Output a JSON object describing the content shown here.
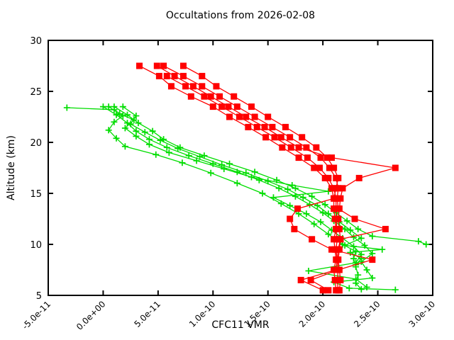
{
  "chart_data": {
    "type": "line",
    "title": "Occultations from 2026-02-08",
    "xlabel": "CFC11 VMR",
    "ylabel": "Altitude (km)",
    "xlim": [
      -5e-11,
      3e-10
    ],
    "ylim": [
      5,
      30
    ],
    "grid": false,
    "legend_position": "none",
    "x_tick_rotation_deg": -45,
    "x_ticks": [
      {
        "value": -5e-11,
        "label": "-5.0e-11"
      },
      {
        "value": 0.0,
        "label": "0.0e+00"
      },
      {
        "value": 5e-11,
        "label": "5.0e-11"
      },
      {
        "value": 1e-10,
        "label": "1.0e-10"
      },
      {
        "value": 1.5e-10,
        "label": "1.5e-10"
      },
      {
        "value": 2e-10,
        "label": "2.0e-10"
      },
      {
        "value": 2.5e-10,
        "label": "2.5e-10"
      },
      {
        "value": 3e-10,
        "label": "3.0e-10"
      }
    ],
    "y_ticks": [
      {
        "value": 5,
        "label": "5"
      },
      {
        "value": 10,
        "label": "10"
      },
      {
        "value": 15,
        "label": "15"
      },
      {
        "value": 20,
        "label": "20"
      },
      {
        "value": 25,
        "label": "25"
      },
      {
        "value": 30,
        "label": "30"
      }
    ],
    "colors": {
      "red": "#ff0000",
      "green": "#00dd00",
      "axis": "#000000",
      "background": "#ffffff"
    },
    "series": [
      {
        "name": "occultation-green-1",
        "color": "green",
        "marker": "plus",
        "points": [
          [
            -3.3e-11,
            23.4
          ],
          [
            1e-11,
            23.2
          ],
          [
            1.8e-11,
            22.6
          ],
          [
            1e-11,
            22.0
          ],
          [
            5e-12,
            21.2
          ],
          [
            1.2e-11,
            20.4
          ],
          [
            2e-11,
            19.6
          ],
          [
            4.8e-11,
            18.8
          ],
          [
            7.2e-11,
            18.0
          ],
          [
            9.8e-11,
            17.0
          ],
          [
            1.22e-10,
            16.0
          ],
          [
            1.45e-10,
            15.0
          ],
          [
            1.62e-10,
            14.0
          ],
          [
            1.78e-10,
            13.0
          ],
          [
            1.92e-10,
            12.0
          ],
          [
            2.05e-10,
            11.0
          ],
          [
            2.18e-10,
            10.0
          ],
          [
            2.3e-10,
            9.3
          ],
          [
            2.28e-10,
            8.6
          ],
          [
            2.3e-10,
            7.8
          ],
          [
            2.32e-10,
            7.0
          ],
          [
            2.3e-10,
            6.2
          ],
          [
            2.35e-10,
            5.6
          ]
        ]
      },
      {
        "name": "occultation-green-2",
        "color": "green",
        "marker": "plus",
        "points": [
          [
            5e-12,
            23.5
          ],
          [
            1.5e-11,
            22.8
          ],
          [
            2.8e-11,
            22.2
          ],
          [
            2e-11,
            21.4
          ],
          [
            3e-11,
            20.6
          ],
          [
            4.2e-11,
            19.8
          ],
          [
            6e-11,
            19.0
          ],
          [
            8.5e-11,
            18.2
          ],
          [
            1.1e-10,
            17.4
          ],
          [
            1.35e-10,
            16.6
          ],
          [
            1.72e-10,
            15.8
          ],
          [
            2.05e-10,
            15.2
          ],
          [
            1.55e-10,
            14.6
          ],
          [
            1.7e-10,
            13.8
          ],
          [
            1.85e-10,
            13.0
          ],
          [
            1.98e-10,
            12.2
          ],
          [
            2.08e-10,
            11.4
          ],
          [
            2.18e-10,
            10.6
          ],
          [
            2.28e-10,
            9.8
          ],
          [
            2.35e-10,
            9.0
          ],
          [
            2.3e-10,
            8.2
          ],
          [
            1.87e-10,
            7.4
          ],
          [
            2.3e-10,
            6.6
          ],
          [
            2.4e-10,
            5.8
          ]
        ]
      },
      {
        "name": "occultation-green-3",
        "color": "green",
        "marker": "plus",
        "points": [
          [
            1e-11,
            23.5
          ],
          [
            2.2e-11,
            22.7
          ],
          [
            3.2e-11,
            21.9
          ],
          [
            4.5e-11,
            21.1
          ],
          [
            5.5e-11,
            20.3
          ],
          [
            7e-11,
            19.5
          ],
          [
            9.2e-11,
            18.7
          ],
          [
            1.15e-10,
            17.9
          ],
          [
            1.38e-10,
            17.1
          ],
          [
            1.58e-10,
            16.3
          ],
          [
            1.75e-10,
            15.5
          ],
          [
            1.9e-10,
            14.7
          ],
          [
            2.02e-10,
            13.9
          ],
          [
            2.12e-10,
            13.1
          ],
          [
            2.22e-10,
            12.3
          ],
          [
            2.32e-10,
            11.5
          ],
          [
            2.45e-10,
            10.8
          ],
          [
            2.87e-10,
            10.3
          ],
          [
            2.94e-10,
            10.0
          ]
        ]
      },
      {
        "name": "occultation-green-4",
        "color": "green",
        "marker": "plus",
        "points": [
          [
            1.8e-11,
            23.5
          ],
          [
            3e-11,
            22.6
          ],
          [
            2.5e-11,
            21.8
          ],
          [
            3.8e-11,
            21.0
          ],
          [
            5.2e-11,
            20.2
          ],
          [
            6.8e-11,
            19.4
          ],
          [
            8.8e-11,
            18.6
          ],
          [
            1.08e-10,
            17.8
          ],
          [
            1.3e-10,
            17.0
          ],
          [
            1.5e-10,
            16.2
          ],
          [
            1.68e-10,
            15.4
          ],
          [
            1.82e-10,
            14.6
          ],
          [
            1.95e-10,
            13.8
          ],
          [
            2.05e-10,
            13.0
          ],
          [
            2.15e-10,
            12.2
          ],
          [
            2.25e-10,
            11.4
          ],
          [
            2.35e-10,
            10.6
          ],
          [
            2.2e-10,
            9.9
          ],
          [
            2.54e-10,
            9.5
          ],
          [
            2.25e-10,
            9.2
          ],
          [
            2.35e-10,
            8.6
          ],
          [
            2.3e-10,
            8.0
          ]
        ]
      },
      {
        "name": "occultation-green-5",
        "color": "green",
        "marker": "plus",
        "points": [
          [
            0.0,
            23.5
          ],
          [
            1.2e-11,
            22.7
          ],
          [
            2.2e-11,
            21.9
          ],
          [
            3e-11,
            21.1
          ],
          [
            4.2e-11,
            20.3
          ],
          [
            5.8e-11,
            19.5
          ],
          [
            7.8e-11,
            18.7
          ],
          [
            1e-10,
            17.9
          ],
          [
            1.22e-10,
            17.1
          ],
          [
            1.42e-10,
            16.3
          ],
          [
            1.6e-10,
            15.5
          ],
          [
            1.75e-10,
            14.7
          ],
          [
            1.88e-10,
            13.9
          ],
          [
            2e-10,
            13.1
          ],
          [
            2.1e-10,
            12.3
          ],
          [
            2.2e-10,
            11.5
          ],
          [
            2.28e-10,
            10.7
          ],
          [
            2.38e-10,
            9.9
          ],
          [
            2.45e-10,
            9.1
          ],
          [
            2.35e-10,
            8.3
          ],
          [
            2.4e-10,
            7.5
          ],
          [
            2.45e-10,
            6.7
          ],
          [
            2.1e-10,
            6.3
          ],
          [
            2.24e-10,
            5.7
          ],
          [
            2.66e-10,
            5.55
          ]
        ]
      },
      {
        "name": "occultation-red-1",
        "color": "red",
        "marker": "square",
        "points": [
          [
            3.3e-11,
            27.5
          ],
          [
            5.1e-11,
            26.5
          ],
          [
            6.2e-11,
            25.5
          ],
          [
            8e-11,
            24.5
          ],
          [
            1e-10,
            23.5
          ],
          [
            1.15e-10,
            22.5
          ],
          [
            1.32e-10,
            21.5
          ],
          [
            1.48e-10,
            20.5
          ],
          [
            1.63e-10,
            19.5
          ],
          [
            1.78e-10,
            18.5
          ],
          [
            1.92e-10,
            17.5
          ],
          [
            2.02e-10,
            16.5
          ],
          [
            2.08e-10,
            15.5
          ],
          [
            2.1e-10,
            14.5
          ],
          [
            2.1e-10,
            13.5
          ],
          [
            2.11e-10,
            12.5
          ],
          [
            2.12e-10,
            11.5
          ],
          [
            2.1e-10,
            10.5
          ],
          [
            2.11e-10,
            9.5
          ],
          [
            2.12e-10,
            8.5
          ],
          [
            2.1e-10,
            7.5
          ],
          [
            2.11e-10,
            6.5
          ],
          [
            2.12e-10,
            5.5
          ]
        ]
      },
      {
        "name": "occultation-red-2",
        "color": "red",
        "marker": "square",
        "points": [
          [
            4.9e-11,
            27.5
          ],
          [
            6.5e-11,
            26.5
          ],
          [
            8.2e-11,
            25.5
          ],
          [
            9.8e-11,
            24.5
          ],
          [
            1.14e-10,
            23.5
          ],
          [
            1.3e-10,
            22.5
          ],
          [
            1.47e-10,
            21.5
          ],
          [
            1.62e-10,
            20.5
          ],
          [
            1.78e-10,
            19.5
          ],
          [
            2.08e-10,
            18.5
          ],
          [
            2.66e-10,
            17.5
          ],
          [
            2.33e-10,
            16.5
          ],
          [
            2.18e-10,
            15.5
          ],
          [
            2.16e-10,
            14.5
          ],
          [
            2.15e-10,
            13.5
          ],
          [
            2.14e-10,
            12.5
          ],
          [
            2.15e-10,
            11.5
          ],
          [
            2.16e-10,
            10.5
          ],
          [
            2.15e-10,
            9.5
          ],
          [
            2.14e-10,
            8.5
          ],
          [
            2.15e-10,
            7.5
          ],
          [
            2.16e-10,
            6.5
          ],
          [
            2.15e-10,
            5.5
          ]
        ]
      },
      {
        "name": "occultation-red-3",
        "color": "red",
        "marker": "square",
        "points": [
          [
            5.5e-11,
            27.5
          ],
          [
            7.3e-11,
            26.5
          ],
          [
            9e-11,
            25.5
          ],
          [
            1.06e-10,
            24.5
          ],
          [
            1.22e-10,
            23.5
          ],
          [
            1.38e-10,
            22.5
          ],
          [
            1.54e-10,
            21.5
          ],
          [
            1.7e-10,
            20.5
          ],
          [
            1.85e-10,
            19.5
          ],
          [
            1.98e-10,
            18.5
          ],
          [
            2.06e-10,
            17.5
          ],
          [
            2.12e-10,
            16.5
          ],
          [
            2.14e-10,
            15.5
          ],
          [
            2.13e-10,
            14.5
          ],
          [
            2.14e-10,
            13.5
          ],
          [
            2.29e-10,
            12.5
          ],
          [
            2.57e-10,
            11.5
          ],
          [
            2.16e-10,
            10.5
          ],
          [
            2.14e-10,
            9.5
          ],
          [
            2.13e-10,
            8.5
          ],
          [
            2.14e-10,
            7.5
          ],
          [
            2.13e-10,
            6.5
          ],
          [
            2.14e-10,
            5.5
          ]
        ]
      },
      {
        "name": "occultation-red-4",
        "color": "red",
        "marker": "square",
        "points": [
          [
            7.3e-11,
            27.5
          ],
          [
            9e-11,
            26.5
          ],
          [
            1.03e-10,
            25.5
          ],
          [
            1.19e-10,
            24.5
          ],
          [
            1.35e-10,
            23.5
          ],
          [
            1.5e-10,
            22.5
          ],
          [
            1.66e-10,
            21.5
          ],
          [
            1.81e-10,
            20.5
          ],
          [
            1.94e-10,
            19.5
          ],
          [
            2.04e-10,
            18.5
          ],
          [
            2.1e-10,
            17.5
          ],
          [
            2.14e-10,
            16.5
          ],
          [
            2.12e-10,
            15.5
          ],
          [
            2.1e-10,
            14.5
          ],
          [
            1.77e-10,
            13.5
          ],
          [
            1.7e-10,
            12.5
          ],
          [
            1.74e-10,
            11.5
          ],
          [
            1.9e-10,
            10.5
          ],
          [
            2.08e-10,
            9.5
          ],
          [
            2.45e-10,
            8.5
          ],
          [
            2.14e-10,
            7.5
          ],
          [
            1.89e-10,
            6.5
          ],
          [
            2.05e-10,
            5.5
          ]
        ]
      },
      {
        "name": "occultation-red-5",
        "color": "red",
        "marker": "square",
        "points": [
          [
            5.8e-11,
            26.5
          ],
          [
            7.5e-11,
            25.5
          ],
          [
            9.2e-11,
            24.5
          ],
          [
            1.08e-10,
            23.5
          ],
          [
            1.24e-10,
            22.5
          ],
          [
            1.4e-10,
            21.5
          ],
          [
            1.56e-10,
            20.5
          ],
          [
            1.71e-10,
            19.5
          ],
          [
            1.86e-10,
            18.5
          ],
          [
            1.97e-10,
            17.5
          ],
          [
            2.05e-10,
            16.5
          ],
          [
            2.1e-10,
            15.5
          ],
          [
            2.12e-10,
            14.5
          ],
          [
            2.12e-10,
            13.5
          ],
          [
            2.13e-10,
            12.5
          ],
          [
            2.12e-10,
            11.5
          ],
          [
            2.13e-10,
            10.5
          ],
          [
            2.12e-10,
            9.5
          ],
          [
            2.13e-10,
            8.5
          ],
          [
            2.12e-10,
            7.5
          ],
          [
            1.8e-10,
            6.5
          ],
          [
            2e-10,
            5.5
          ]
        ]
      }
    ]
  }
}
